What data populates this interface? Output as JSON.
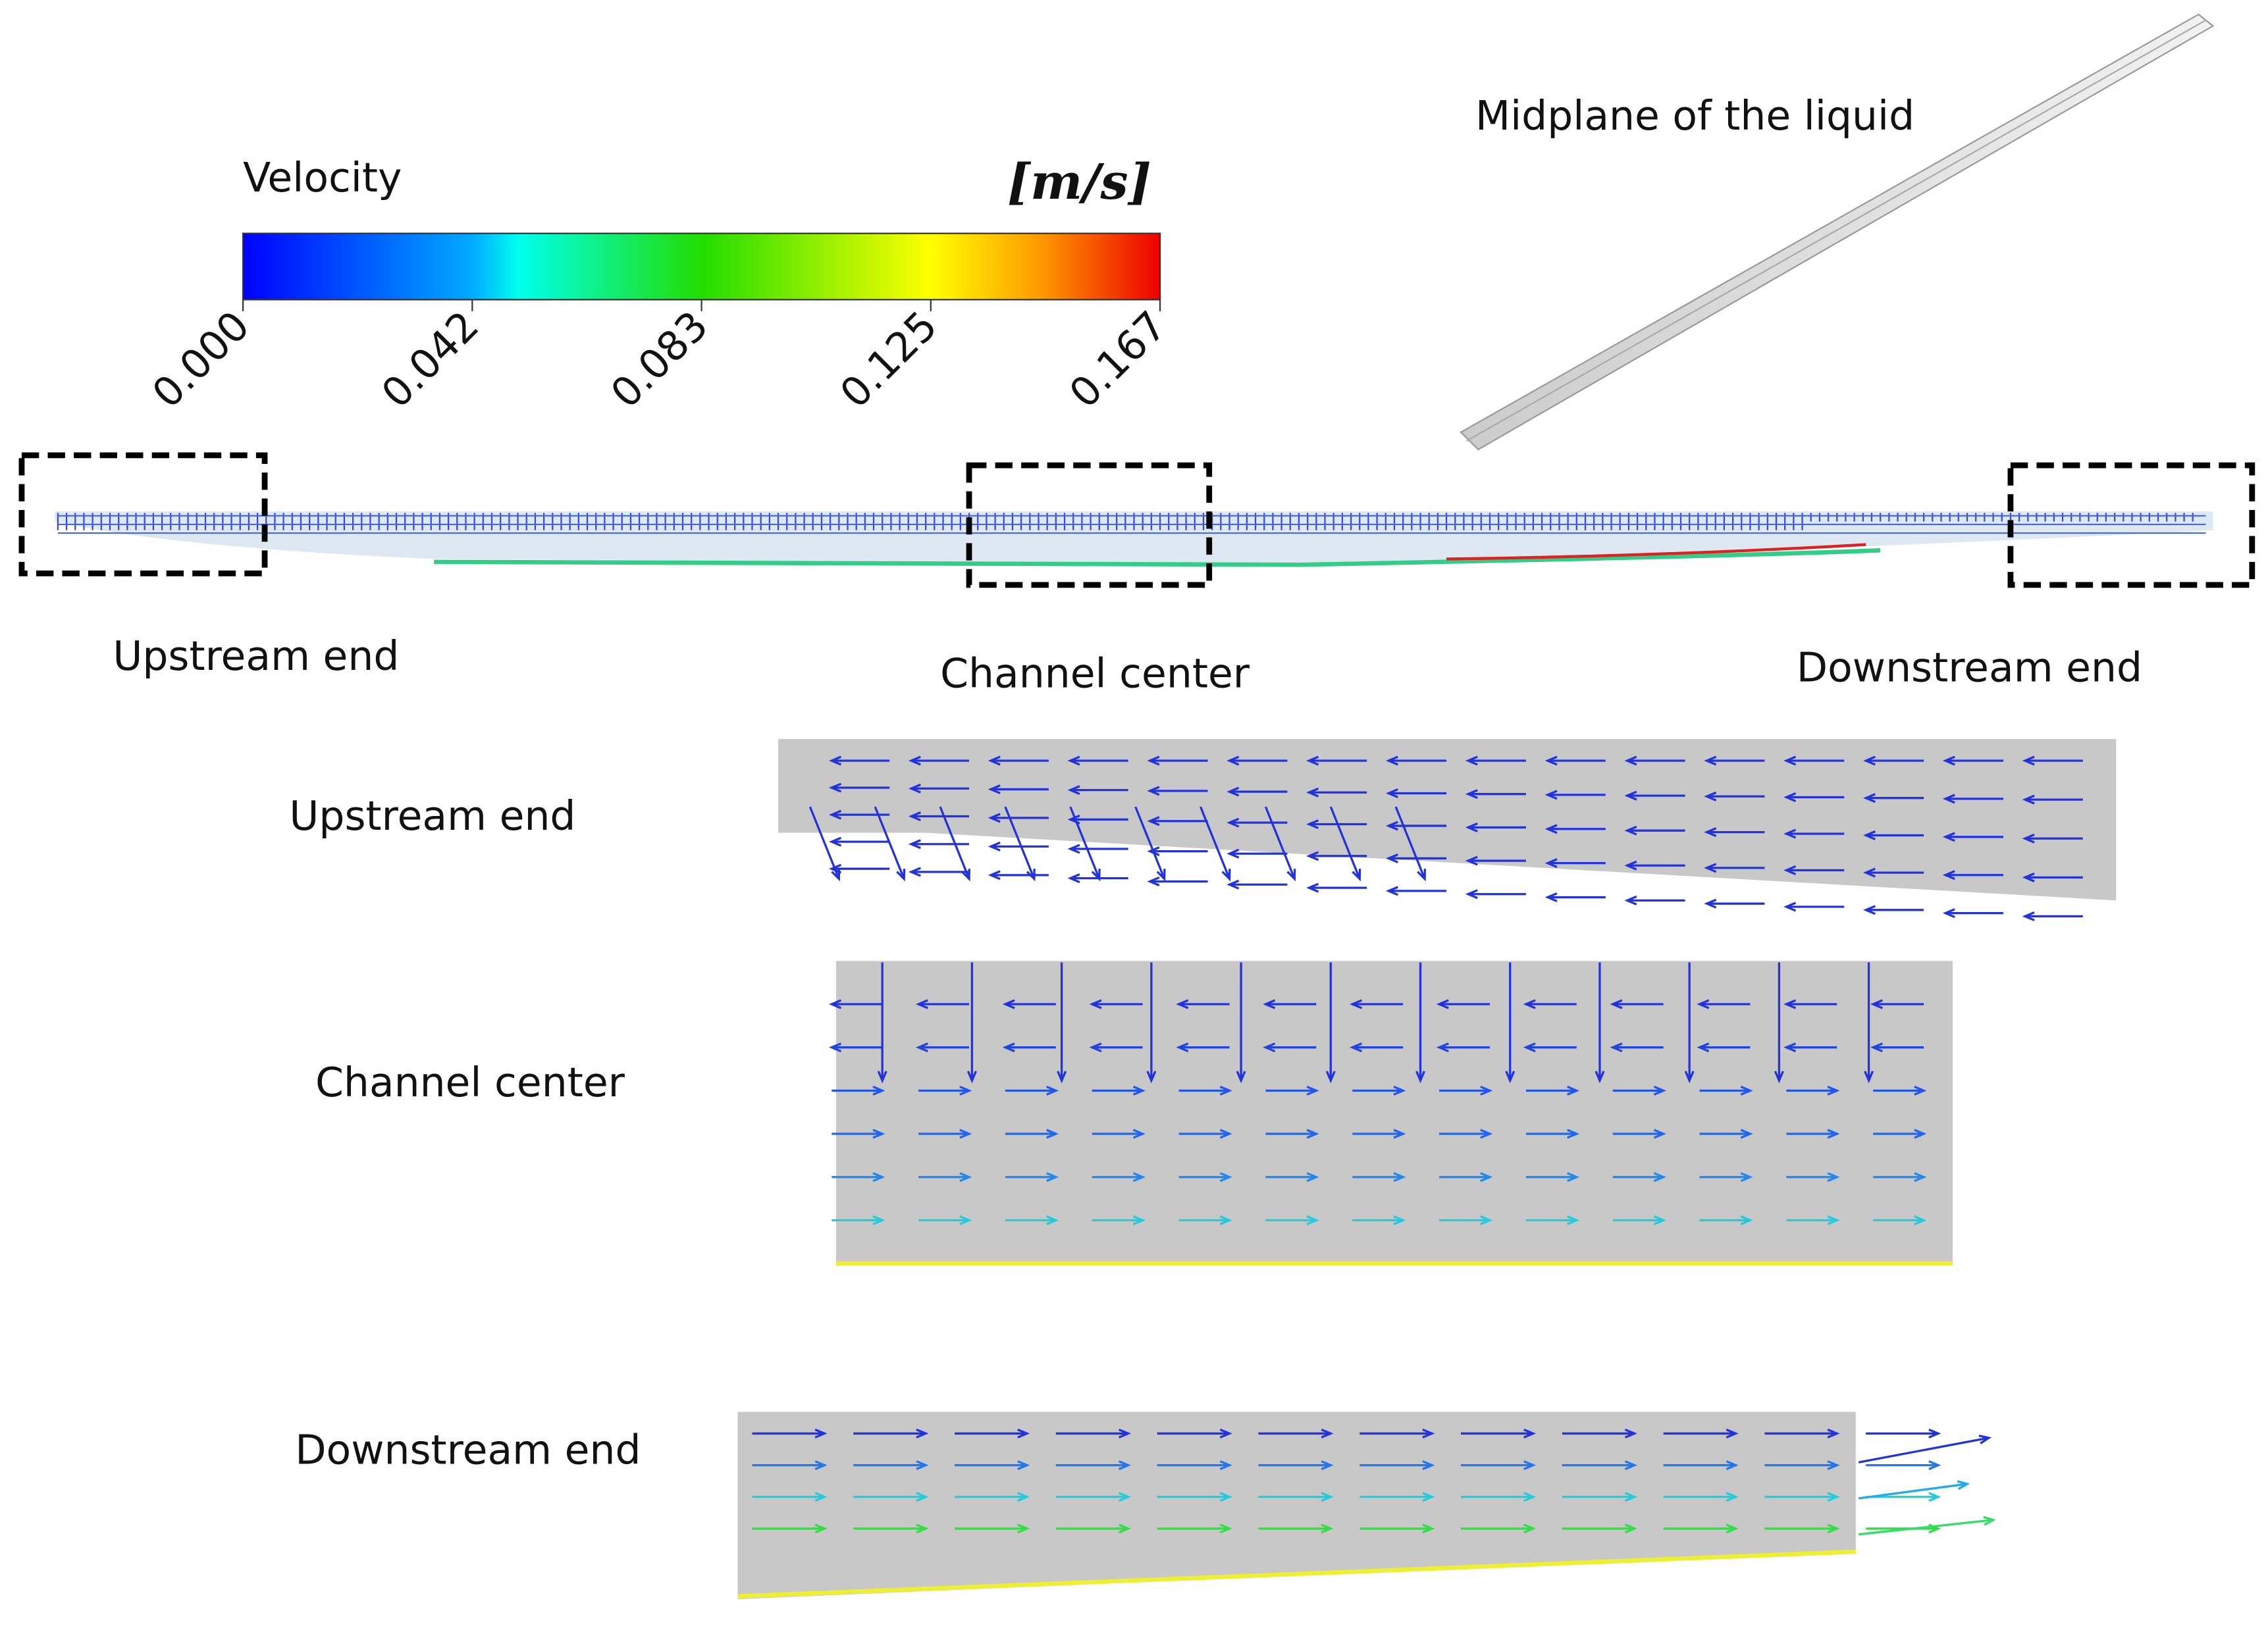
{
  "colorbar": {
    "title": "Velocity",
    "unit": "[m/s]",
    "ticks": [
      "0.000",
      "0.042",
      "0.083",
      "0.125",
      "0.167"
    ]
  },
  "inset_label": "Midplane of the liquid",
  "overview": {
    "labels": [
      "Upstream end",
      "Channel center",
      "Downstream end"
    ]
  },
  "panels": [
    {
      "label": "Upstream end"
    },
    {
      "label": "Channel center"
    },
    {
      "label": "Downstream end"
    }
  ]
}
